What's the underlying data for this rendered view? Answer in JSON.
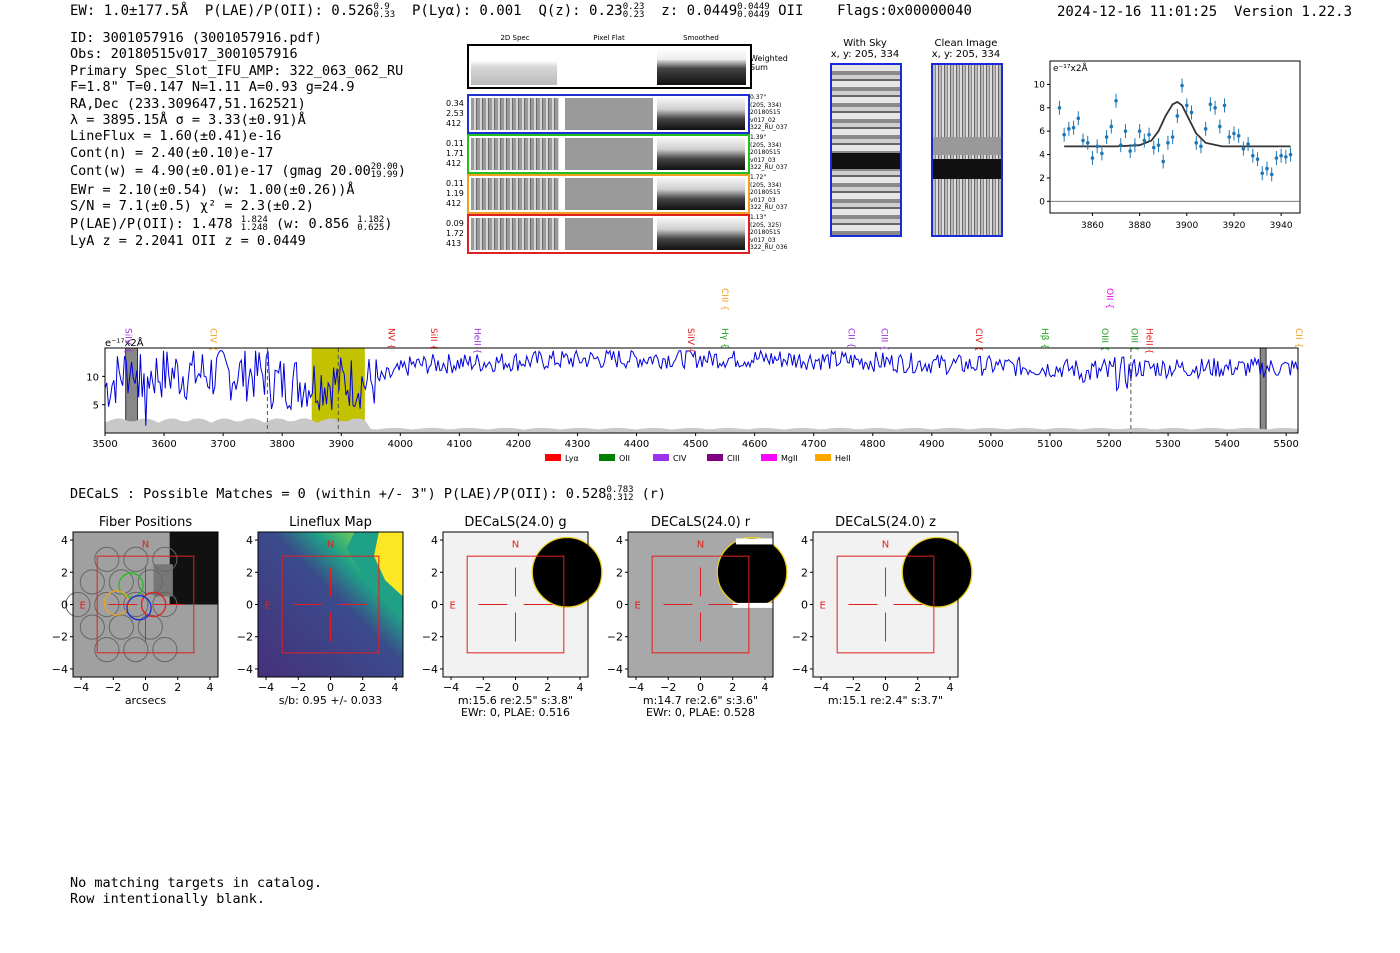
{
  "header": {
    "ew": "EW: 1.0±177.5Å",
    "plae_label": "P(LAE)/P(OII): 0.526",
    "plae_hi": "0.9",
    "plae_lo": "0.33",
    "plya": "P(Lyα): 0.001",
    "qz_label": "Q(z): 0.23",
    "qz_hi": "0.23",
    "qz_lo": "0.23",
    "z_label": "z: 0.0449",
    "z_hi": "0.0449",
    "z_lo": "0.0449",
    "z_line": "OII",
    "flags": "Flags:0x00000040",
    "timestamp": "2024-12-16 11:01:25",
    "version": "Version 1.22.3"
  },
  "info": {
    "id": "ID: 3001057916 (3001057916.pdf)",
    "obs": "Obs: 20180515v017_3001057916",
    "primary": "Primary Spec_Slot_IFU_AMP: 322_063_062_RU",
    "fiber": "F=1.8\"  T=0.147  N=1.11  A=0.93  g=24.9",
    "radec": "RA,Dec (233.309647,51.162521)",
    "lambda": "λ = 3895.15Å  σ = 3.33(±0.91)Å",
    "lineflux": "LineFlux = 1.60(±0.41)e-16",
    "contn": "Cont(n) = 2.40(±0.10)e-17",
    "contw": "Cont(w) = 4.90(±0.01)e-17 (gmag 20.00",
    "contw_hi": "20.00",
    "contw_lo": "19.99",
    "contw_end": ")",
    "ewr": "EWr = 2.10(±0.54) (w: 1.00(±0.26))Å",
    "sn": "S/N = 7.1(±0.5)  χ² = 2.3(±0.2)",
    "plae": "P(LAE)/P(OII): 1.478",
    "plae_hi": "1.824",
    "plae_lo": "1.248",
    "plae_w": "(w: 0.856",
    "plae_w_hi": "1.182",
    "plae_w_lo": "0.625",
    "plae_end": ")",
    "lya": "LyA z = 2.2041  OII z = 0.0449"
  },
  "cutouts": {
    "headers": [
      "2D Spec",
      "Pixel Flat",
      "Smoothed"
    ],
    "weighted_sum": [
      "Weighted",
      "Sum"
    ],
    "rows": [
      {
        "color": "#2030d0",
        "left": [
          "0.34",
          "2.53",
          "412"
        ],
        "right": [
          "0.37\"",
          "(205, 334)",
          "20180515",
          "v017_02",
          "322_RU_037"
        ]
      },
      {
        "color": "#20c020",
        "left": [
          "0.11",
          "1.71",
          "412"
        ],
        "right": [
          "1.39\"",
          "(205, 334)",
          "20180515",
          "v017_03",
          "322_RU_037"
        ]
      },
      {
        "color": "#f0a020",
        "left": [
          "0.11",
          "1.19",
          "412"
        ],
        "right": [
          "1.72\"",
          "(205, 334)",
          "20180515",
          "v017_03",
          "322_RU_037"
        ]
      },
      {
        "color": "#e02020",
        "left": [
          "0.09",
          "1.72",
          "413"
        ],
        "right": [
          "1.13\"",
          "(205, 325)",
          "20180515",
          "v017_03",
          "322_RU_036"
        ]
      }
    ],
    "with_sky_title": "With Sky",
    "with_sky_sub": "x, y: 205, 334",
    "clean_title": "Clean Image",
    "clean_sub": "x, y: 205, 334"
  },
  "chart_data": [
    {
      "type": "line",
      "id": "zoom-spectrum",
      "title": "",
      "ylabel_unit": "e⁻¹⁷x2Å",
      "xlim": [
        3842,
        3948
      ],
      "ylim": [
        -1,
        12
      ],
      "xticks": [
        3860,
        3880,
        3900,
        3920,
        3940
      ],
      "yticks": [
        0,
        2,
        4,
        6,
        8,
        10
      ],
      "data_x": [
        3846,
        3848,
        3850,
        3852,
        3854,
        3856,
        3858,
        3860,
        3862,
        3864,
        3866,
        3868,
        3870,
        3872,
        3874,
        3876,
        3878,
        3880,
        3882,
        3884,
        3886,
        3888,
        3890,
        3892,
        3894,
        3896,
        3898,
        3900,
        3902,
        3904,
        3906,
        3908,
        3910,
        3912,
        3914,
        3916,
        3918,
        3920,
        3922,
        3924,
        3926,
        3928,
        3930,
        3932,
        3934,
        3936,
        3938,
        3940,
        3942,
        3944
      ],
      "data_y": [
        8.0,
        5.7,
        6.2,
        6.3,
        7.1,
        5.2,
        5.0,
        3.7,
        4.7,
        4.1,
        5.5,
        6.4,
        8.6,
        4.8,
        6.0,
        4.3,
        4.8,
        6.0,
        5.2,
        5.7,
        4.6,
        4.8,
        3.4,
        5.0,
        5.5,
        7.3,
        9.9,
        8.2,
        7.6,
        5.0,
        4.7,
        6.2,
        8.3,
        8.0,
        6.4,
        8.2,
        5.5,
        5.8,
        5.6,
        4.5,
        4.9,
        3.9,
        3.6,
        2.4,
        2.8,
        2.3,
        3.7,
        3.9,
        3.8,
        4.0
      ],
      "fit_x": [
        3848,
        3870,
        3880,
        3885,
        3888,
        3891,
        3894,
        3896,
        3898,
        3901,
        3904,
        3908,
        3915,
        3944
      ],
      "fit_y": [
        4.7,
        4.7,
        4.8,
        5.2,
        6.0,
        7.3,
        8.3,
        8.5,
        8.2,
        7.0,
        5.8,
        5.0,
        4.7,
        4.7
      ]
    },
    {
      "type": "line",
      "id": "full-spectrum",
      "ylabel_unit": "e⁻¹⁷x2Å",
      "xlim": [
        3500,
        5520
      ],
      "ylim": [
        0,
        15
      ],
      "xticks": [
        3500,
        3600,
        3700,
        3800,
        3900,
        4000,
        4100,
        4200,
        4300,
        4400,
        4500,
        4600,
        4700,
        4800,
        4900,
        5000,
        5100,
        5200,
        5300,
        5400,
        5500
      ],
      "yticks": [
        5,
        10
      ],
      "highlight_band": [
        3850,
        3940
      ],
      "dashed_lines": [
        3775,
        3895,
        5237
      ],
      "masked_bands": [
        [
          3535,
          3555
        ],
        [
          5456,
          5466
        ]
      ],
      "line_labels": [
        {
          "name": "SiIV",
          "wave": 3528,
          "color": "#9a32d4",
          "row": "low"
        },
        {
          "name": "CIV",
          "wave": 3672,
          "color": "#f0a020",
          "row": "low"
        },
        {
          "name": "NV",
          "wave": 3973,
          "color": "#e02020",
          "row": "low"
        },
        {
          "name": "SiII",
          "wave": 4045,
          "color": "#e02020",
          "row": "low"
        },
        {
          "name": "HeII",
          "wave": 4119,
          "color": "#9a32d4",
          "row": "low"
        },
        {
          "name": "SiIV",
          "wave": 4480,
          "color": "#e02020",
          "row": "low"
        },
        {
          "name": "Hγ",
          "wave": 4538,
          "color": "#20a020",
          "row": "low"
        },
        {
          "name": "CIII",
          "wave": 4538,
          "color": "#f0a020",
          "row": "high"
        },
        {
          "name": "CII",
          "wave": 4752,
          "color": "#9a32d4",
          "row": "low"
        },
        {
          "name": "CIII",
          "wave": 4808,
          "color": "#9a32d4",
          "row": "low"
        },
        {
          "name": "CIV",
          "wave": 4968,
          "color": "#e02020",
          "row": "low"
        },
        {
          "name": "Hβ",
          "wave": 5080,
          "color": "#20a020",
          "row": "low"
        },
        {
          "name": "OIII",
          "wave": 5181,
          "color": "#20a020",
          "row": "low"
        },
        {
          "name": "OII",
          "wave": 5190,
          "color": "#ee00ee",
          "row": "high"
        },
        {
          "name": "OIII",
          "wave": 5231,
          "color": "#20a020",
          "row": "low"
        },
        {
          "name": "HeII",
          "wave": 5257,
          "color": "#e02020",
          "row": "low"
        },
        {
          "name": "CII",
          "wave": 5510,
          "color": "#f0a020",
          "row": "low"
        }
      ],
      "legend": [
        {
          "name": "Lyα",
          "color": "#ff0000"
        },
        {
          "name": "OII",
          "color": "#008000"
        },
        {
          "name": "CIV",
          "color": "#9a32f0"
        },
        {
          "name": "CIII",
          "color": "#800080"
        },
        {
          "name": "MgII",
          "color": "#ff00ff"
        },
        {
          "name": "HeII",
          "color": "#ffa500"
        }
      ]
    },
    {
      "type": "heatmap",
      "id": "cutout-panels",
      "xlim": [
        -4.5,
        4.5
      ],
      "ylim": [
        -4.5,
        4.5
      ],
      "ticks": [
        -4,
        -2,
        0,
        2,
        4
      ],
      "panels": [
        {
          "title": "Fiber Positions",
          "caption": [
            "arcsecs"
          ]
        },
        {
          "title": "Lineflux Map",
          "caption": [
            "s/b: 0.95 +/- 0.033"
          ]
        },
        {
          "title": "DECaLS(24.0) g",
          "caption": [
            "m:15.6  re:2.5\"  s:3.8\"",
            "EWr: 0, PLAE: 0.516"
          ]
        },
        {
          "title": "DECaLS(24.0) r",
          "caption": [
            "m:14.7  re:2.6\"  s:3.6\"",
            "EWr: 0, PLAE: 0.528"
          ]
        },
        {
          "title": "DECaLS(24.0) z",
          "caption": [
            "m:15.1  re:2.4\"  s:3.7\""
          ]
        }
      ]
    }
  ],
  "decals": {
    "line": "DECaLS : Possible Matches = 0 (within +/- 3\")  P(LAE)/P(OII): 0.528",
    "hi": "0.783",
    "lo": "0.312",
    "end": "(r)"
  },
  "catalog": {
    "line1": "No matching targets in catalog.",
    "line2": "Row intentionally blank."
  },
  "labels": {
    "north": "N",
    "east": "E"
  }
}
